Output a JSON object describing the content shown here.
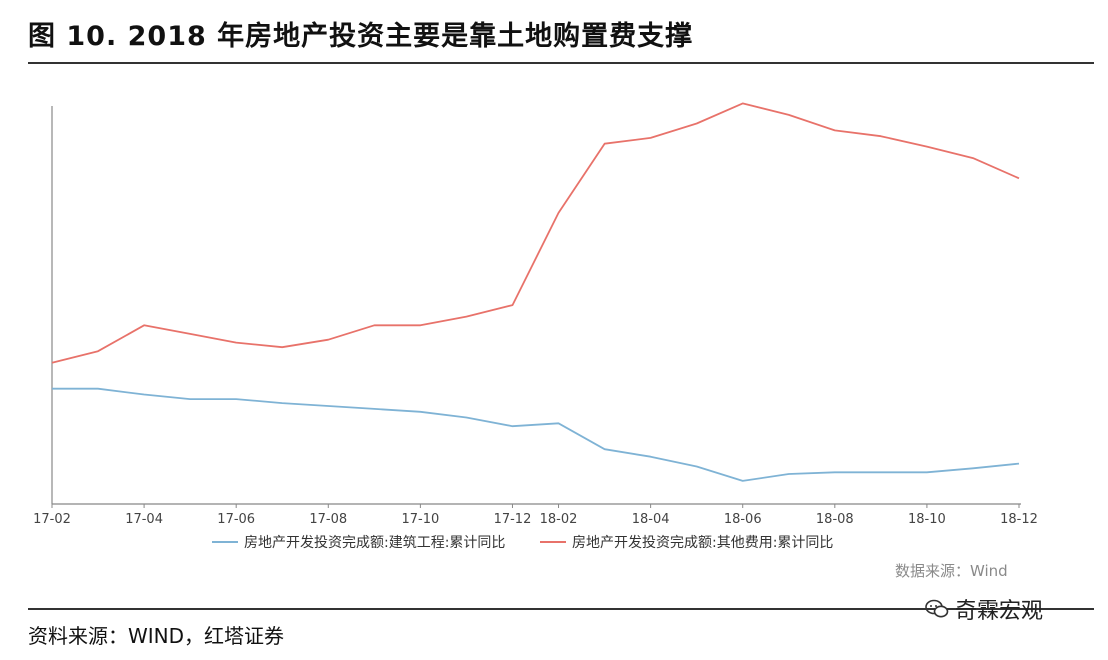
{
  "title": "图 10. 2018 年房地产投资主要是靠土地购置费支撑",
  "source": "资料来源：WIND，红塔证券",
  "data_source_note": "数据来源：Wind",
  "watermark": "奇霖宏观",
  "colors": {
    "series_construction": "#7fb3d5",
    "series_other_fees": "#e8726a",
    "axis": "#888888"
  },
  "chart_data": {
    "type": "line",
    "unit": "%",
    "x": [
      "17-02",
      "17-03",
      "17-04",
      "17-05",
      "17-06",
      "17-07",
      "17-08",
      "17-09",
      "17-10",
      "17-11",
      "17-12",
      "18-02",
      "18-03",
      "18-04",
      "18-05",
      "18-06",
      "18-07",
      "18-08",
      "18-09",
      "18-10",
      "18-11",
      "18-12"
    ],
    "x_tick_labels": [
      "17-02",
      "17-04",
      "17-06",
      "17-08",
      "17-10",
      "17-12",
      "18-02",
      "18-04",
      "18-06",
      "18-08",
      "18-10",
      "18-12"
    ],
    "ylim": [
      -10,
      58
    ],
    "series": [
      {
        "name": "房地产开发投资完成额:建筑工程:累计同比",
        "color": "#7fb3d5",
        "values": [
          10,
          10,
          9,
          8.2,
          8.2,
          7.5,
          7,
          6.5,
          6,
          5,
          3.5,
          4,
          -0.5,
          -1.8,
          -3.5,
          -6,
          -4.8,
          -4.5,
          -4.5,
          -4.5,
          -3.8,
          -3
        ]
      },
      {
        "name": "房地产开发投资完成额:其他费用:累计同比",
        "color": "#e8726a",
        "values": [
          14.5,
          16.5,
          21,
          19.5,
          18,
          17.2,
          18.5,
          21,
          21,
          22.5,
          24.5,
          40.5,
          52.5,
          53.5,
          56,
          59.5,
          57.5,
          54.8,
          53.8,
          52,
          50,
          46.5
        ]
      }
    ]
  }
}
